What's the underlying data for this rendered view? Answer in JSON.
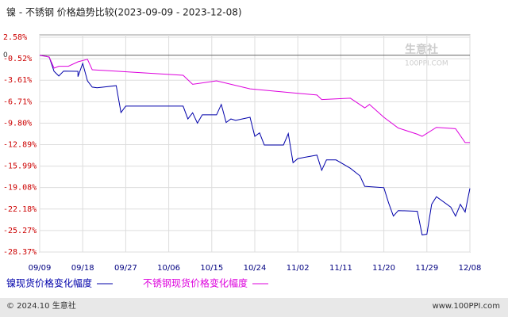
{
  "chart_data": {
    "type": "line",
    "title": "镍 - 不锈钢 价格趋势比较(2023-09-09 - 2023-12-08)",
    "watermark": [
      "生意社",
      "100PPI.COM"
    ],
    "footer_left": "© 2024.10 生意社",
    "footer_right": "www.100PPI.com",
    "xlim": [
      "09/09",
      "12/08"
    ],
    "xticks": [
      "09/09",
      "09/18",
      "09/27",
      "10/06",
      "10/15",
      "10/24",
      "11/02",
      "11/11",
      "11/20",
      "11/29",
      "12/08"
    ],
    "ylim": [
      -28.37,
      2.58
    ],
    "yticks": [
      {
        "value": 2.58,
        "label": "2.58%"
      },
      {
        "value": -0.52,
        "label": "-0.52%"
      },
      {
        "value": -3.61,
        "label": "-3.61%"
      },
      {
        "value": -6.71,
        "label": "-6.71%"
      },
      {
        "value": -9.8,
        "label": "-9.80%"
      },
      {
        "value": -12.89,
        "label": "-12.89%"
      },
      {
        "value": -15.99,
        "label": "-15.99%"
      },
      {
        "value": -19.08,
        "label": "-19.08%"
      },
      {
        "value": -22.18,
        "label": "-22.18%"
      },
      {
        "value": -25.27,
        "label": "-25.27%"
      },
      {
        "value": -28.37,
        "label": "-28.37%"
      }
    ],
    "zero_line": {
      "value": 0,
      "label": "0"
    },
    "grid": true,
    "series": [
      {
        "name": "镍现货价格变化幅度",
        "color": "#0000aa",
        "x": [
          "09/09",
          "09/11",
          "09/12",
          "09/13",
          "09/14",
          "09/17",
          "09/17",
          "09/18",
          "09/19",
          "09/20",
          "09/21",
          "09/25",
          "09/26",
          "09/27",
          "10/09",
          "10/10",
          "10/11",
          "10/12",
          "10/13",
          "10/16",
          "10/17",
          "10/18",
          "10/19",
          "10/20",
          "10/23",
          "10/24",
          "10/25",
          "10/26",
          "10/30",
          "10/31",
          "11/01",
          "11/02",
          "11/06",
          "11/07",
          "11/08",
          "11/10",
          "11/13",
          "11/15",
          "11/16",
          "11/20",
          "11/21",
          "11/22",
          "11/23",
          "11/27",
          "11/28",
          "11/29",
          "11/30",
          "12/01",
          "12/04",
          "12/05",
          "12/06",
          "12/07",
          "12/08"
        ],
        "values": [
          0,
          -0.27,
          -2.33,
          -3.0,
          -2.3,
          -2.33,
          -3.1,
          -1.19,
          -3.7,
          -4.6,
          -4.7,
          -4.4,
          -8.27,
          -7.35,
          -7.35,
          -9.2,
          -8.3,
          -9.8,
          -8.6,
          -8.6,
          -7.1,
          -9.7,
          -9.2,
          -9.4,
          -8.95,
          -11.7,
          -11.2,
          -12.95,
          -12.95,
          -11.3,
          -15.5,
          -14.9,
          -14.4,
          -16.6,
          -15.1,
          -15.1,
          -16.3,
          -17.4,
          -18.9,
          -19.1,
          -21.3,
          -23.2,
          -22.4,
          -22.5,
          -25.9,
          -25.8,
          -21.5,
          -20.4,
          -21.9,
          -23.2,
          -21.5,
          -22.6,
          -19.2
        ]
      },
      {
        "name": "不锈钢现货价格变化幅度",
        "color": "#dd00dd",
        "x": [
          "09/09",
          "09/11",
          "09/12",
          "09/13",
          "09/15",
          "09/17",
          "09/19",
          "09/20",
          "10/09",
          "10/11",
          "10/16",
          "10/23",
          "11/02",
          "11/06",
          "11/07",
          "11/13",
          "11/16",
          "11/17",
          "11/20",
          "11/23",
          "11/27",
          "11/28",
          "12/01",
          "12/05",
          "12/07",
          "12/08"
        ],
        "values": [
          0,
          -0.27,
          -1.87,
          -1.6,
          -1.6,
          -0.96,
          -0.6,
          -2.1,
          -2.9,
          -4.2,
          -3.7,
          -4.85,
          -5.5,
          -5.75,
          -6.4,
          -6.2,
          -7.6,
          -7.1,
          -8.95,
          -10.5,
          -11.4,
          -11.7,
          -10.4,
          -10.6,
          -12.6,
          -12.6
        ]
      }
    ]
  }
}
